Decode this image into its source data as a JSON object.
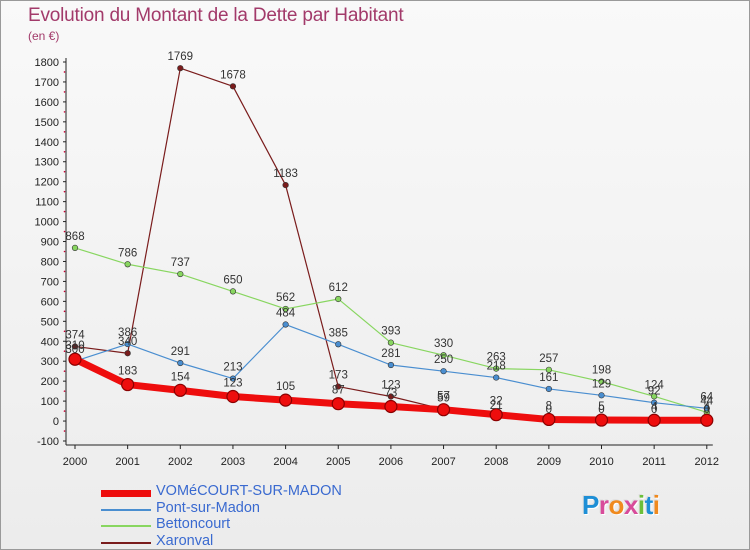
{
  "title": "Evolution du Montant de la Dette par Habitant",
  "subtitle": "(en €)",
  "logo_text": "Proxiti",
  "colors": {
    "title": "#a23a6a",
    "legend_text": "#3a6ad0"
  },
  "chart_data": {
    "type": "line",
    "title": "Evolution du Montant de la Dette par Habitant",
    "ylabel": "(en €)",
    "ylim": [
      -100,
      1800
    ],
    "y_ticks": [
      "-100",
      "0",
      "100",
      "200",
      "300",
      "400",
      "500",
      "600",
      "700",
      "800",
      "900",
      "1000",
      "1100",
      "1200",
      "1300",
      "1400",
      "1500",
      "1600",
      "1700",
      "1800"
    ],
    "x": [
      "2000",
      "2001",
      "2002",
      "2003",
      "2004",
      "2005",
      "2006",
      "2007",
      "2008",
      "2009",
      "2010",
      "2011",
      "2012"
    ],
    "grid": false,
    "legend_position": "bottom-left",
    "series": [
      {
        "name": "Xaronval",
        "color": "#7a1c1c",
        "stroke": 1.2,
        "marker": 2.8,
        "values": [
          374,
          340,
          1769,
          1678,
          1183,
          173,
          123,
          59,
          21,
          0,
          0,
          0,
          0
        ],
        "labels": [
          "374",
          "340",
          "1769",
          "1678",
          "1183",
          "173",
          "123",
          "59",
          "21",
          "0",
          "0",
          "0",
          "0"
        ]
      },
      {
        "name": "Bettoncourt",
        "color": "#88d660",
        "stroke": 1.2,
        "marker": 2.8,
        "values": [
          868,
          786,
          737,
          650,
          562,
          612,
          393,
          330,
          263,
          257,
          198,
          124,
          44
        ],
        "labels": [
          "868",
          "786",
          "737",
          "650",
          "562",
          "612",
          "393",
          "330",
          "263",
          "257",
          "198",
          "124",
          "44"
        ]
      },
      {
        "name": "Pont-sur-Madon",
        "color": "#4a8ed0",
        "stroke": 1.2,
        "marker": 2.8,
        "values": [
          300,
          386,
          291,
          213,
          484,
          385,
          281,
          250,
          218,
          161,
          129,
          92,
          64
        ],
        "labels": [
          "300",
          "386",
          "291",
          "213",
          "484",
          "385",
          "281",
          "250",
          "218",
          "161",
          "129",
          "92",
          "64"
        ]
      },
      {
        "name": "VOMéCOURT-SUR-MADON",
        "color": "#ee0d0d",
        "stroke": 7,
        "marker": 6,
        "values": [
          310,
          183,
          154,
          123,
          105,
          87,
          73,
          57,
          32,
          8,
          5,
          4,
          4
        ],
        "labels": [
          "310",
          "183",
          "154",
          "123",
          "105",
          "87",
          "73",
          "57",
          "32",
          "8",
          "5",
          "4",
          "4"
        ]
      }
    ]
  },
  "legend": [
    {
      "name": "VOMéCOURT-SUR-MADON",
      "color": "#ee0d0d",
      "thick": 7
    },
    {
      "name": "Pont-sur-Madon",
      "color": "#4a8ed0",
      "thick": 2
    },
    {
      "name": "Bettoncourt",
      "color": "#88d660",
      "thick": 2
    },
    {
      "name": "Xaronval",
      "color": "#7a1c1c",
      "thick": 2
    }
  ]
}
